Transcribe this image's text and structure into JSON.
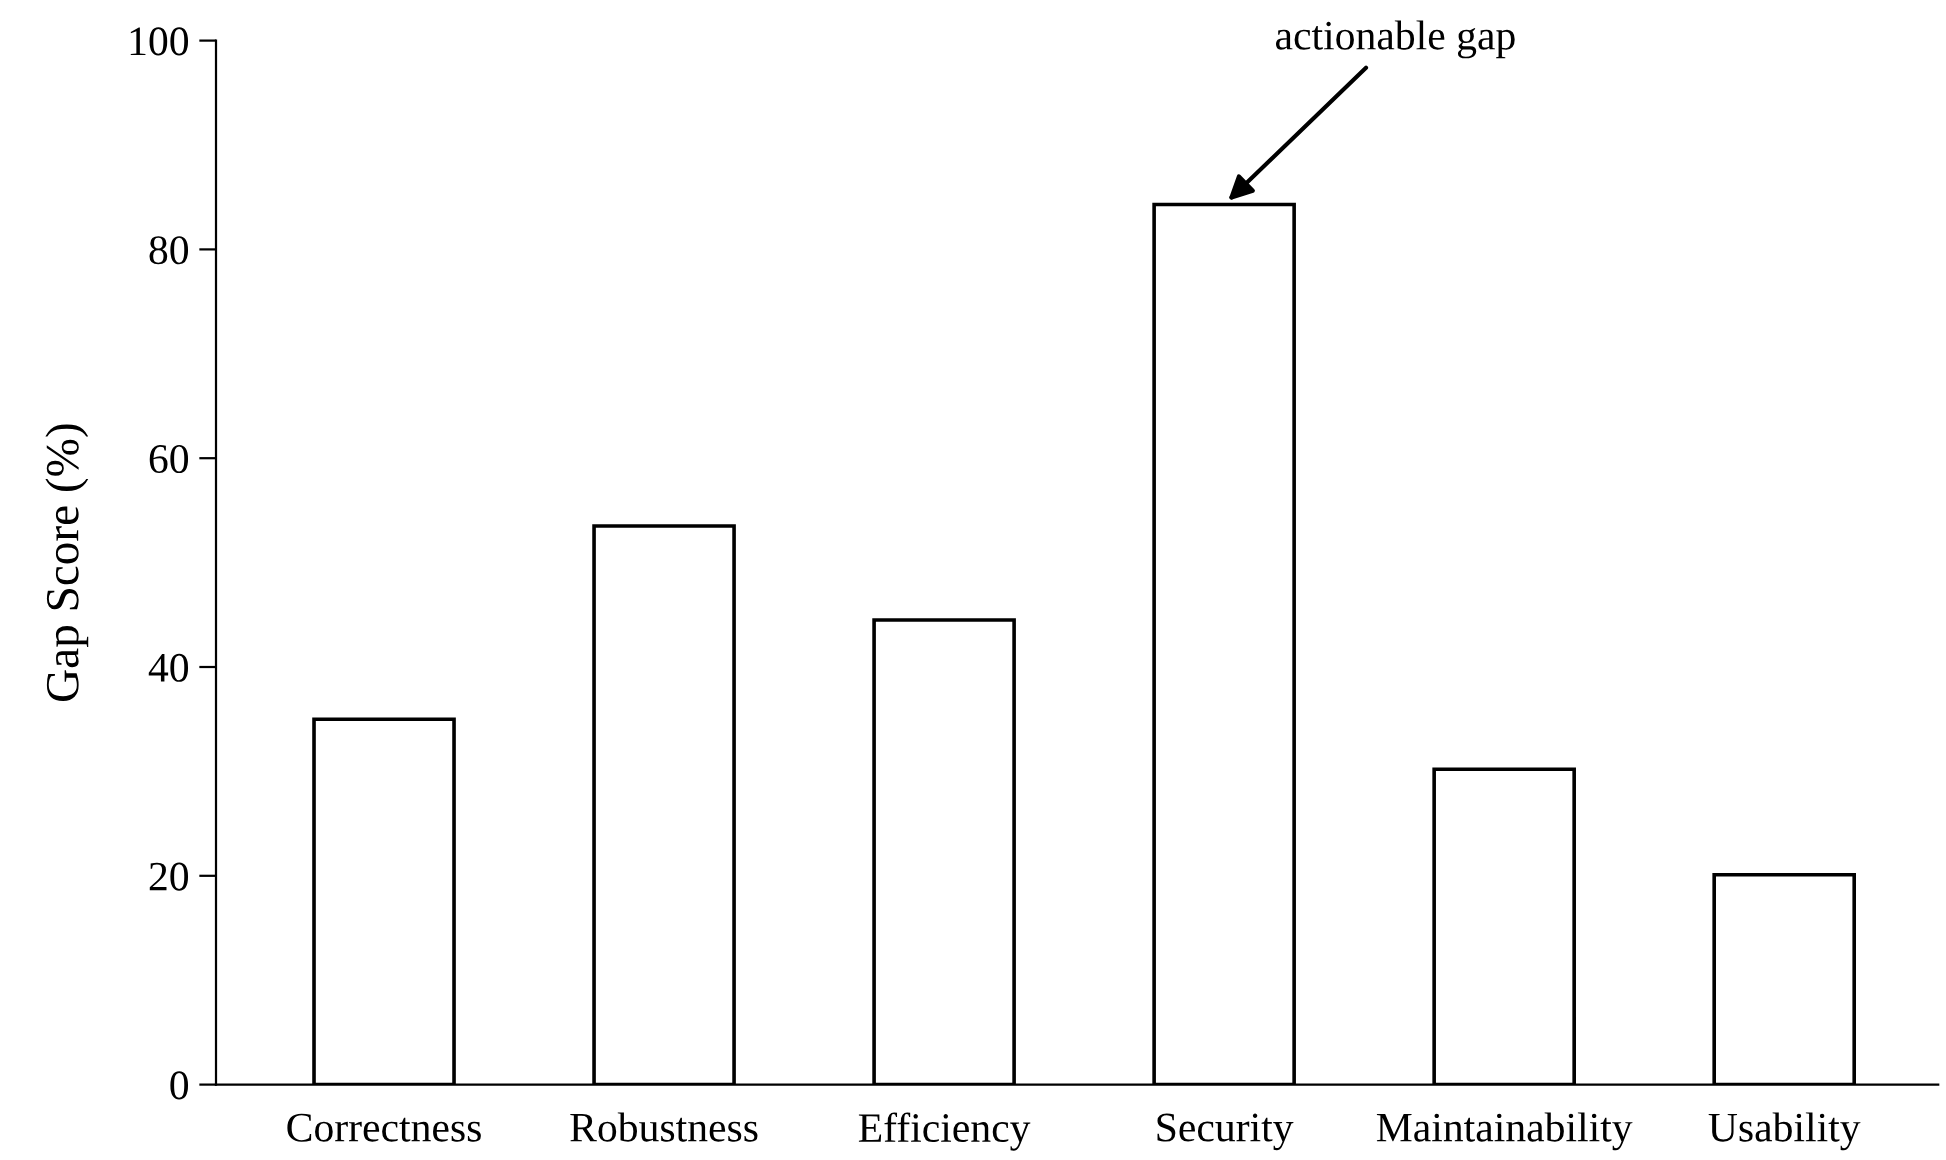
{
  "chart_data": {
    "type": "bar",
    "categories": [
      "Correctness",
      "Robustness",
      "Efficiency",
      "Security",
      "Maintainability",
      "Usability"
    ],
    "values": [
      35,
      53.5,
      44.5,
      84.3,
      30.2,
      20.1
    ],
    "color": "#ffffff",
    "ylabel": "Gap Score (%)",
    "ylim": [
      0,
      100
    ],
    "yticks": [
      0,
      20,
      40,
      60,
      80,
      100
    ],
    "annotations": [
      {
        "text": "actionable gap",
        "x": "Security",
        "y": 84.3
      }
    ],
    "grid": false,
    "legend": false
  }
}
